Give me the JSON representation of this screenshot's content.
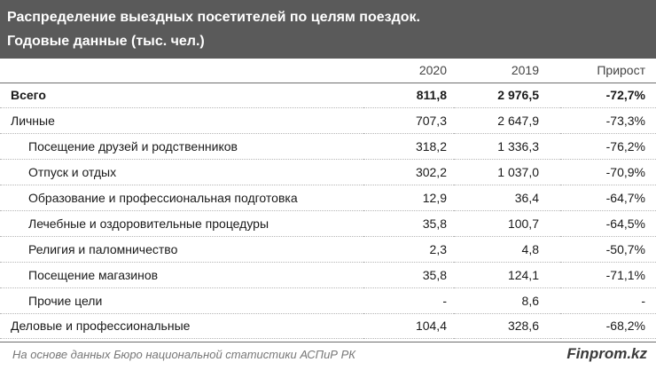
{
  "header": {
    "title_line1": "Распределение выездных посетителей по целям поездок.",
    "title_line2": "Годовые данные (тыс. чел.)"
  },
  "columns": {
    "label": "",
    "year_2020": "2020",
    "year_2019": "2019",
    "growth": "Прирост"
  },
  "rows": [
    {
      "label": "Всего",
      "v2020": "811,8",
      "v2019": "2 976,5",
      "growth": "-72,7%"
    },
    {
      "label": "Личные",
      "v2020": "707,3",
      "v2019": "2 647,9",
      "growth": "-73,3%"
    },
    {
      "label": "Посещение друзей и родственников",
      "v2020": "318,2",
      "v2019": "1 336,3",
      "growth": "-76,2%"
    },
    {
      "label": "Отпуск и отдых",
      "v2020": "302,2",
      "v2019": "1 037,0",
      "growth": "-70,9%"
    },
    {
      "label": "Образование и профессиональная подготовка",
      "v2020": "12,9",
      "v2019": "36,4",
      "growth": "-64,7%"
    },
    {
      "label": "Лечебные и оздоровительные процедуры",
      "v2020": "35,8",
      "v2019": "100,7",
      "growth": "-64,5%"
    },
    {
      "label": "Религия и паломничество",
      "v2020": "2,3",
      "v2019": "4,8",
      "growth": "-50,7%"
    },
    {
      "label": "Посещение магазинов",
      "v2020": "35,8",
      "v2019": "124,1",
      "growth": "-71,1%"
    },
    {
      "label": "Прочие цели",
      "v2020": "-",
      "v2019": "8,6",
      "growth": "-"
    },
    {
      "label": "Деловые и профессиональные",
      "v2020": "104,4",
      "v2019": "328,6",
      "growth": "-68,2%"
    }
  ],
  "footer": {
    "source": "На основе данных Бюро национальной статистики АСПиР РК",
    "brand": "Finprom.kz"
  }
}
